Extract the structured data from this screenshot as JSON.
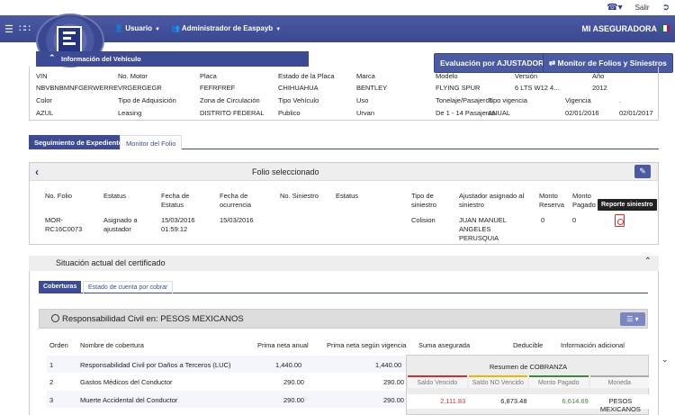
{
  "topbar": {
    "salir": "Salir"
  },
  "navbar": {
    "menu": [
      {
        "label": "Usuario"
      },
      {
        "label": "Administrador de Easpayb"
      }
    ],
    "brand": "MI ASEGURADORA"
  },
  "vehicle": {
    "section_title": "Información del Vehículo",
    "btn_ajustador": "Evaluación por AJUSTADOR",
    "btn_monitor": "Monitor de Folios y Siniestros",
    "row1_labels": [
      "VIN",
      "No. Motor",
      "Placa",
      "Estado de la Placa",
      "Marca",
      "Modelo",
      "Versión",
      "Año"
    ],
    "row1_values": [
      "NBVBNBMNFGERWERRE",
      "VRGERGEGR",
      "FEFRFREF",
      "CHIHUAHUA",
      "BENTLEY",
      "FLYING SPUR",
      "6 LTS W12 4...",
      "2012"
    ],
    "row2_labels": [
      "Color",
      "Tipo de Adquisición",
      "Zona de Circulación",
      "Tipo Vehículo",
      "Uso",
      "Tonelaje/Pasajeros",
      "Tipo vigencia",
      "Vigencia",
      "."
    ],
    "row2_values": [
      "AZUL",
      "Leasing",
      "DISTRITO FEDERAL",
      "Publico",
      "Urvan",
      "De 1 - 14 Pasajeros",
      "ANUAL",
      "02/01/2016",
      "02/01/2017"
    ]
  },
  "tabs": [
    "Seguimiento de Expediente",
    "Monitor del Folio"
  ],
  "folio": {
    "title": "Folio seleccionado",
    "headers": [
      "No. Folio",
      "Estatus",
      "Fecha de Estatus",
      "Fecha de ocurrencia",
      "No. Siniestro",
      "Estatus",
      "Tipo de siniestro",
      "Ajustador asignado al siniestro",
      "Monto Reserva",
      "Monto Pagado"
    ],
    "row": {
      "folio": "MOR-RC16C0073",
      "estatus": "Asignado a ajustador",
      "fecha_estatus": "15/03/2016 01:59:12",
      "fecha_ocurrencia": "15/03/2016",
      "no_siniestro": "",
      "estatus2": "",
      "tipo": "Colision",
      "ajustador": "JUAN MANUEL ANGELES PERUSQUIA",
      "monto_reserva": "0",
      "monto_pagado": "0"
    },
    "tooltip": "Reporte siniestro"
  },
  "situacion": {
    "title": "Situación actual del certificado",
    "subtabs": [
      "Coberturas",
      "Estado de cuenta por cobrar"
    ],
    "rc_title": "Responsabilidad Civil en: PESOS MEXICANOS",
    "cov_headers": [
      "Orden",
      "Nombre de cobertura",
      "Prima neta anual",
      "Prima neta según vigencia",
      "Suma asegurada",
      "Deducible",
      "Información adicional"
    ],
    "coverages": [
      {
        "orden": "1",
        "nombre": "Responsabilidad Civil por Daños a Terceros (LUC)",
        "anual": "1,440.00",
        "vigencia": "1,440.00"
      },
      {
        "orden": "2",
        "nombre": "Gastos Médicos del Conductor",
        "anual": "290.00",
        "vigencia": "290.00"
      },
      {
        "orden": "3",
        "nombre": "Muerte Accidental del Conductor",
        "anual": "290.00",
        "vigencia": "290.00"
      }
    ]
  },
  "cobranza": {
    "title": "Resumen de COBRANZA",
    "cols": [
      "Saldo Vencido",
      "Saldo NO Vencido",
      "Monto Pagado",
      "Moneda"
    ],
    "values": [
      "2,111.83",
      "6,873.48",
      "6,614.69",
      "PESOS MEXICANOS"
    ],
    "colors": {
      "vencido": "#d32f2f",
      "no_vencido": "#f0b400",
      "pagado": "#3a8a3a",
      "moneda": "#aaaaaa"
    }
  }
}
